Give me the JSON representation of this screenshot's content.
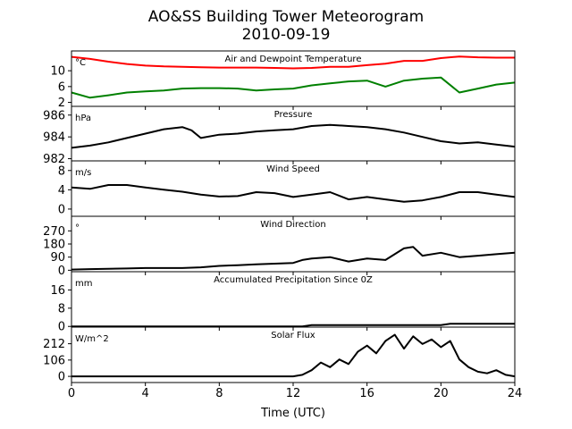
{
  "chart_data": {
    "type": "line",
    "title": "AO&SS Building Tower Meteorogram",
    "subtitle": "2010-09-19",
    "xlabel": "Time (UTC)",
    "xlim": [
      0,
      24
    ],
    "xticks": [
      0,
      4,
      8,
      12,
      16,
      20,
      24
    ],
    "panels": [
      {
        "title": "Air and Dewpoint Temperature",
        "unit": "°C",
        "ylim": [
          1,
          15
        ],
        "yticks": [
          2,
          6,
          10
        ],
        "series": [
          {
            "color": "#ff0000",
            "x": [
              0,
              1,
              2,
              3,
              4,
              5,
              6,
              7,
              8,
              9,
              10,
              11,
              12,
              13,
              14,
              15,
              16,
              17,
              18,
              19,
              20,
              21,
              22,
              23,
              24
            ],
            "y": [
              13.5,
              13.0,
              12.3,
              11.7,
              11.3,
              11.1,
              11.0,
              10.9,
              10.8,
              10.8,
              10.8,
              10.7,
              10.6,
              10.7,
              11.0,
              11.0,
              11.4,
              11.8,
              12.5,
              12.5,
              13.2,
              13.6,
              13.4,
              13.3,
              13.3
            ]
          },
          {
            "color": "#008000",
            "x": [
              0,
              1,
              2,
              3,
              4,
              5,
              6,
              7,
              8,
              9,
              10,
              11,
              12,
              13,
              14,
              15,
              16,
              17,
              18,
              19,
              20,
              21,
              22,
              23,
              24
            ],
            "y": [
              4.5,
              3.2,
              3.8,
              4.5,
              4.8,
              5.0,
              5.5,
              5.6,
              5.6,
              5.5,
              5.0,
              5.3,
              5.5,
              6.3,
              6.8,
              7.3,
              7.5,
              6.0,
              7.5,
              8.0,
              8.3,
              4.5,
              5.5,
              6.5,
              7.0
            ]
          }
        ]
      },
      {
        "title": "Pressure",
        "unit": "hPa",
        "ylim": [
          981.8,
          986.8
        ],
        "yticks": [
          982,
          984,
          986
        ],
        "series": [
          {
            "color": "#000000",
            "x": [
              0,
              1,
              2,
              3,
              4,
              5,
              6,
              6.5,
              7,
              8,
              9,
              10,
              11,
              12,
              13,
              14,
              15,
              16,
              17,
              18,
              19,
              20,
              21,
              22,
              23,
              24
            ],
            "y": [
              983.0,
              983.2,
              983.5,
              983.9,
              984.3,
              984.7,
              984.9,
              984.6,
              983.9,
              984.2,
              984.3,
              984.5,
              984.6,
              984.7,
              985.0,
              985.1,
              985.0,
              984.9,
              984.7,
              984.4,
              984.0,
              983.6,
              983.4,
              983.5,
              983.3,
              983.1
            ]
          }
        ]
      },
      {
        "title": "Wind Speed",
        "unit": "m/s",
        "ylim": [
          -1.5,
          10
        ],
        "yticks": [
          0,
          4,
          8
        ],
        "series": [
          {
            "color": "#000000",
            "x": [
              0,
              1,
              2,
              3,
              4,
              5,
              6,
              7,
              8,
              9,
              10,
              11,
              12,
              13,
              14,
              15,
              16,
              17,
              18,
              19,
              20,
              21,
              22,
              23,
              24
            ],
            "y": [
              4.5,
              4.2,
              5.0,
              5.0,
              4.5,
              4.0,
              3.6,
              3.0,
              2.6,
              2.7,
              3.5,
              3.3,
              2.5,
              3.0,
              3.5,
              2.0,
              2.5,
              2.0,
              1.5,
              1.8,
              2.5,
              3.5,
              3.5,
              3.0,
              2.5
            ]
          }
        ]
      },
      {
        "title": "Wind Direction",
        "unit": "°",
        "ylim": [
          -10,
          370
        ],
        "yticks": [
          0,
          90,
          180,
          270
        ],
        "series": [
          {
            "color": "#000000",
            "x": [
              0,
              1,
              2,
              3,
              4,
              5,
              6,
              7,
              8,
              9,
              10,
              11,
              12,
              12.5,
              13,
              14,
              15,
              16,
              17,
              18,
              18.5,
              19,
              20,
              21,
              22,
              23,
              24
            ],
            "y": [
              5,
              8,
              10,
              12,
              15,
              15,
              15,
              20,
              30,
              35,
              40,
              45,
              50,
              70,
              80,
              90,
              60,
              80,
              70,
              150,
              160,
              100,
              120,
              90,
              100,
              110,
              120
            ]
          }
        ]
      },
      {
        "title": "Accumulated Precipitation Since 0Z",
        "unit": "mm",
        "ylim": [
          -0.3,
          24
        ],
        "yticks": [
          0,
          8,
          16
        ],
        "series": [
          {
            "color": "#000000",
            "x": [
              0,
              12.5,
              13,
              20,
              20.5,
              24
            ],
            "y": [
              0,
              0,
              0.6,
              0.6,
              1.2,
              1.2
            ]
          }
        ]
      },
      {
        "title": "Solar Flux",
        "unit": "W/m^2",
        "ylim": [
          -40,
          320
        ],
        "yticks": [
          0,
          106,
          212
        ],
        "series": [
          {
            "color": "#000000",
            "x": [
              0,
              1,
              2,
              3,
              4,
              5,
              6,
              7,
              8,
              9,
              10,
              11,
              12,
              12.5,
              13,
              13.5,
              14,
              14.5,
              15,
              15.5,
              16,
              16.5,
              17,
              17.5,
              18,
              18.5,
              19,
              19.5,
              20,
              20.5,
              21,
              21.5,
              22,
              22.5,
              23,
              23.5,
              24
            ],
            "y": [
              0,
              0,
              0,
              0,
              0,
              0,
              0,
              0,
              0,
              0,
              0,
              0,
              0,
              10,
              40,
              90,
              60,
              110,
              80,
              160,
              200,
              150,
              230,
              270,
              180,
              260,
              210,
              240,
              190,
              230,
              110,
              60,
              30,
              20,
              40,
              10,
              0
            ]
          }
        ]
      }
    ]
  }
}
